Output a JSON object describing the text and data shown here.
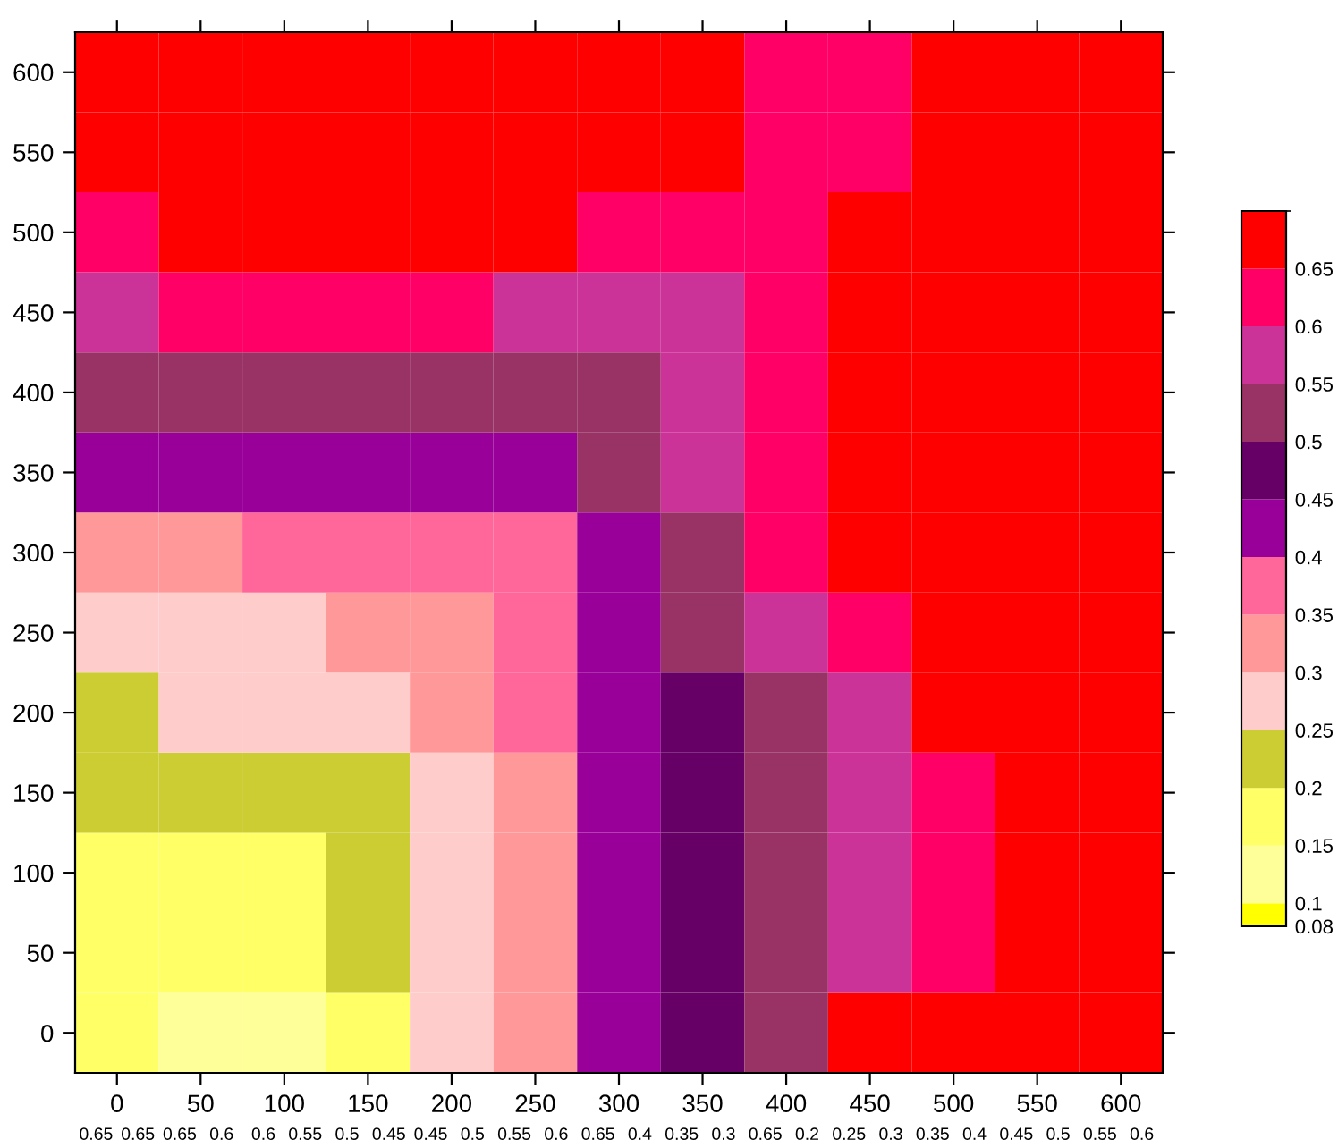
{
  "chart_data": {
    "type": "heatmap",
    "categories": [
      "0",
      "50",
      "100",
      "150",
      "200",
      "250",
      "300",
      "350",
      "400",
      "450",
      "500",
      "550",
      "600"
    ],
    "y_categories": [
      "600",
      "550",
      "500",
      "450",
      "400",
      "350",
      "300",
      "250",
      "200",
      "150",
      "100",
      "50",
      "0"
    ],
    "cells": [
      [
        0.69,
        0.69,
        0.69,
        0.69,
        0.69,
        0.69,
        0.685,
        0.67,
        0.645,
        0.64,
        0.652,
        0.68,
        0.69
      ],
      [
        0.67,
        0.68,
        0.69,
        0.69,
        0.69,
        0.685,
        0.675,
        0.653,
        0.64,
        0.64,
        0.66,
        0.68,
        0.69
      ],
      [
        0.64,
        0.65,
        0.66,
        0.66,
        0.66,
        0.655,
        0.63,
        0.625,
        0.64,
        0.655,
        0.68,
        0.69,
        0.69
      ],
      [
        0.595,
        0.602,
        0.61,
        0.613,
        0.61,
        0.598,
        0.565,
        0.595,
        0.64,
        0.67,
        0.68,
        0.69,
        0.69
      ],
      [
        0.525,
        0.525,
        0.525,
        0.525,
        0.53,
        0.51,
        0.52,
        0.59,
        0.63,
        0.67,
        0.68,
        0.69,
        0.69
      ],
      [
        0.42,
        0.425,
        0.43,
        0.435,
        0.44,
        0.445,
        0.5,
        0.57,
        0.63,
        0.67,
        0.68,
        0.69,
        0.69
      ],
      [
        0.345,
        0.348,
        0.352,
        0.36,
        0.375,
        0.395,
        0.445,
        0.54,
        0.63,
        0.67,
        0.68,
        0.69,
        0.69
      ],
      [
        0.29,
        0.29,
        0.295,
        0.31,
        0.33,
        0.375,
        0.43,
        0.51,
        0.58,
        0.645,
        0.67,
        0.68,
        0.69
      ],
      [
        0.248,
        0.255,
        0.252,
        0.27,
        0.31,
        0.355,
        0.425,
        0.485,
        0.54,
        0.59,
        0.65,
        0.67,
        0.68
      ],
      [
        0.22,
        0.215,
        0.225,
        0.245,
        0.285,
        0.34,
        0.42,
        0.48,
        0.525,
        0.575,
        0.62,
        0.655,
        0.67
      ],
      [
        0.195,
        0.19,
        0.195,
        0.22,
        0.265,
        0.34,
        0.42,
        0.475,
        0.52,
        0.56,
        0.61,
        0.65,
        0.665
      ],
      [
        0.17,
        0.165,
        0.17,
        0.2,
        0.26,
        0.34,
        0.42,
        0.49,
        0.53,
        0.59,
        0.63,
        0.655,
        0.67
      ],
      [
        0.17,
        0.145,
        0.145,
        0.18,
        0.25,
        0.34,
        0.42,
        0.495,
        0.54,
        0.65,
        0.68,
        0.69,
        0.7
      ]
    ],
    "colors": [
      "#ffff00",
      "#ffff99",
      "#ffff66",
      "#cccc33",
      "#ffcccc",
      "#ff9999",
      "#ff6699",
      "#990099",
      "#660066",
      "#993366",
      "#cc3399",
      "#ff0066",
      "#ff0000"
    ],
    "clim": [
      0.08,
      0.7
    ],
    "cticks": [
      0.08,
      0.1,
      0.15,
      0.2,
      0.25,
      0.3,
      0.35,
      0.4,
      0.45,
      0.5,
      0.55,
      0.6,
      0.65
    ],
    "annotations": [
      "0.65",
      "0.65",
      "0.65",
      "0.6",
      "0.6",
      "0.55",
      "0.5",
      "0.45",
      "0.45",
      "0.5",
      "0.55",
      "0.6",
      "0.65",
      "0.4",
      "0.35",
      "0.3",
      "0.65",
      "0.2",
      "0.25",
      "0.3",
      "0.35",
      "0.4",
      "0.45",
      "0.5",
      "0.55",
      "0.6"
    ]
  }
}
